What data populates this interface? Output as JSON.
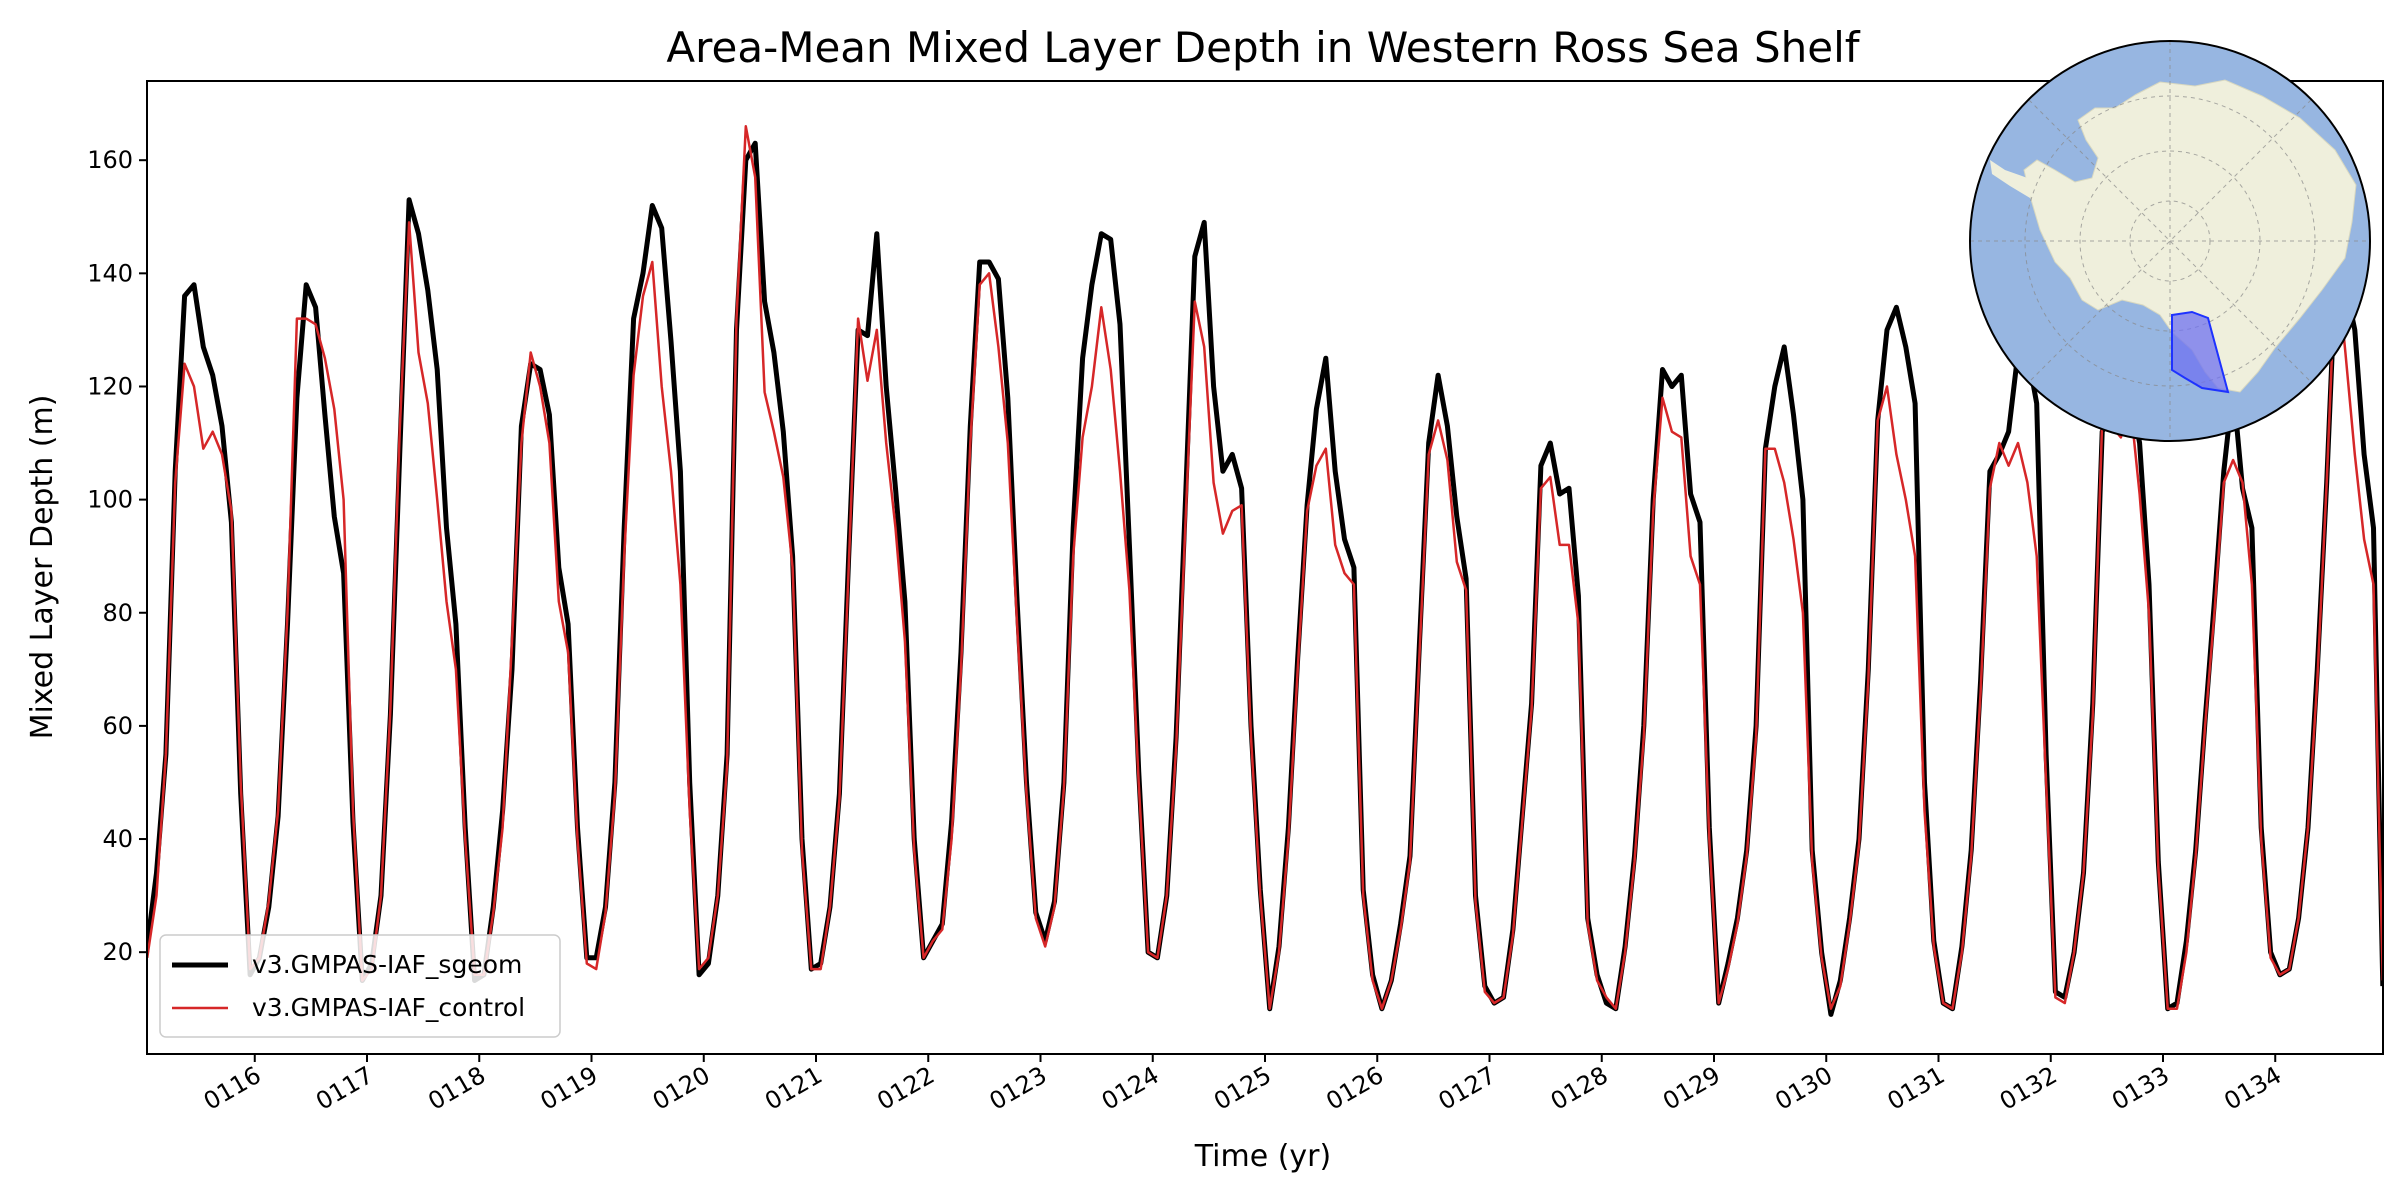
{
  "chart_data": {
    "type": "line",
    "title": "Area-Mean Mixed Layer Depth in Western Ross Sea Shelf",
    "xlabel": "Time (yr)",
    "ylabel": "Mixed Layer Depth (m)",
    "xlim": [
      115.04,
      134.96
    ],
    "ylim": [
      2,
      174
    ],
    "x_tick_values": [
      116,
      117,
      118,
      119,
      120,
      121,
      122,
      123,
      124,
      125,
      126,
      127,
      128,
      129,
      130,
      131,
      132,
      133,
      134
    ],
    "x_tick_labels": [
      "0116",
      "0117",
      "0118",
      "0119",
      "0120",
      "0121",
      "0122",
      "0123",
      "0124",
      "0125",
      "0126",
      "0127",
      "0128",
      "0129",
      "0130",
      "0131",
      "0132",
      "0133",
      "0134"
    ],
    "y_ticks": [
      20,
      40,
      60,
      80,
      100,
      120,
      140,
      160
    ],
    "x_start_year": 115.0,
    "points_per_year": 12,
    "legend_position": "lower left",
    "inset": "south-polar map of Antarctica with the Western Ross Sea shelf region highlighted in blue",
    "series": [
      {
        "name": "v3.GMPAS-IAF_sgeom",
        "color": "#000000",
        "values": [
          21,
          34,
          55,
          105,
          136,
          138,
          127,
          122,
          113,
          96,
          48,
          16,
          19,
          28,
          44,
          78,
          118,
          138,
          134,
          115,
          97,
          87,
          43,
          15,
          18,
          30,
          62,
          108,
          153,
          147,
          137,
          123,
          95,
          78,
          42,
          15,
          16,
          28,
          45,
          70,
          113,
          124,
          123,
          115,
          88,
          78,
          42,
          19,
          19,
          28,
          50,
          95,
          132,
          140,
          152,
          148,
          128,
          105,
          50,
          16,
          18,
          30,
          55,
          130,
          160,
          163,
          135,
          126,
          112,
          90,
          40,
          17,
          18,
          28,
          48,
          90,
          130,
          129,
          147,
          120,
          102,
          82,
          40,
          19,
          22,
          25,
          43,
          73,
          113,
          142,
          142,
          139,
          118,
          82,
          50,
          27,
          22,
          29,
          50,
          95,
          125,
          138,
          147,
          146,
          131,
          92,
          52,
          20,
          19,
          30,
          58,
          100,
          143,
          149,
          120,
          105,
          108,
          102,
          60,
          31,
          10,
          21,
          42,
          72,
          99,
          116,
          125,
          105,
          93,
          88,
          31,
          16,
          10,
          15,
          25,
          37,
          74,
          110,
          122,
          113,
          97,
          86,
          30,
          14,
          11,
          12,
          24,
          44,
          64,
          106,
          110,
          101,
          102,
          83,
          26,
          16,
          11,
          10,
          21,
          37,
          60,
          100,
          123,
          120,
          122,
          101,
          96,
          42,
          11,
          18,
          26,
          38,
          60,
          109,
          120,
          127,
          115,
          100,
          38,
          20,
          9,
          15,
          26,
          40,
          70,
          114,
          130,
          134,
          127,
          117,
          50,
          22,
          11,
          10,
          21,
          38,
          68,
          105,
          108,
          112,
          126,
          126,
          117,
          55,
          13,
          12,
          20,
          34,
          64,
          112,
          116,
          117,
          119,
          110,
          85,
          36,
          10,
          11,
          22,
          38,
          61,
          82,
          105,
          120,
          102,
          95,
          42,
          20,
          16,
          17,
          26,
          42,
          70,
          103,
          142,
          138,
          130,
          108,
          95,
          14
        ]
      },
      {
        "name": "v3.GMPAS-IAF_control",
        "color": "#d62728",
        "values": [
          19,
          30,
          55,
          103,
          124,
          120,
          109,
          112,
          108,
          98,
          50,
          17,
          19,
          29,
          45,
          80,
          132,
          132,
          131,
          125,
          116,
          100,
          45,
          15,
          17,
          30,
          63,
          112,
          149,
          126,
          117,
          100,
          82,
          70,
          40,
          16,
          16,
          27,
          42,
          75,
          110,
          126,
          120,
          110,
          82,
          73,
          40,
          18,
          17,
          27,
          48,
          90,
          122,
          136,
          142,
          120,
          105,
          85,
          45,
          17,
          19,
          30,
          53,
          132,
          166,
          157,
          119,
          112,
          104,
          88,
          38,
          17,
          17,
          28,
          47,
          88,
          132,
          121,
          130,
          110,
          95,
          75,
          38,
          19,
          22,
          24,
          40,
          70,
          110,
          138,
          140,
          127,
          110,
          78,
          48,
          26,
          21,
          28,
          49,
          90,
          111,
          120,
          134,
          123,
          105,
          84,
          50,
          20,
          19,
          30,
          56,
          96,
          135,
          127,
          103,
          94,
          98,
          99,
          58,
          30,
          10,
          20,
          40,
          70,
          98,
          106,
          109,
          92,
          87,
          85,
          30,
          15,
          10,
          15,
          24,
          36,
          72,
          108,
          114,
          107,
          89,
          84,
          29,
          13,
          11,
          12,
          23,
          43,
          63,
          102,
          104,
          92,
          92,
          78,
          25,
          15,
          12,
          10,
          20,
          36,
          58,
          98,
          118,
          112,
          111,
          90,
          85,
          40,
          11,
          17,
          25,
          37,
          58,
          109,
          109,
          103,
          93,
          80,
          36,
          19,
          10,
          14,
          25,
          39,
          68,
          114,
          120,
          108,
          100,
          90,
          45,
          21,
          11,
          10,
          20,
          37,
          66,
          102,
          110,
          106,
          110,
          103,
          90,
          50,
          12,
          11,
          20,
          34,
          62,
          114,
          113,
          111,
          117,
          101,
          80,
          35,
          10,
          10,
          20,
          37,
          60,
          80,
          103,
          107,
          103,
          85,
          40,
          19,
          16,
          17,
          26,
          42,
          68,
          103,
          143,
          126,
          108,
          93,
          85,
          15
        ]
      }
    ]
  }
}
